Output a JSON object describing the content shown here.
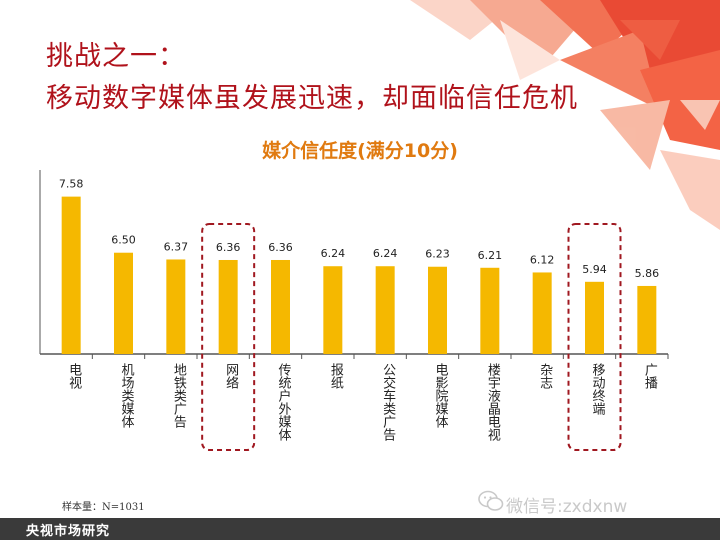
{
  "slide": {
    "title_line1": "挑战之一：",
    "title_line2": "移动数字媒体虽发展迅速，却面临信任危机",
    "sample_note": "样本量：N=1031",
    "watermark": "微信号:zxdxnw",
    "footer": "央视市场研究",
    "colors": {
      "title": "#b0121b",
      "chart_title": "#e07a10",
      "bar": "#f5b800",
      "highlight": "#a01820",
      "footer": "#3a3a3a"
    }
  },
  "chart_data": {
    "type": "bar",
    "title": "媒介信任度(满分10分)",
    "categories": [
      "电视",
      "机场类媒体",
      "地铁类广告",
      "网络",
      "传统户外媒体",
      "报纸",
      "公交车类广告",
      "电影院媒体",
      "楼宇液晶电视",
      "杂志",
      "移动终端",
      "广播"
    ],
    "values": [
      7.58,
      6.5,
      6.37,
      6.36,
      6.36,
      6.24,
      6.24,
      6.23,
      6.21,
      6.12,
      5.94,
      5.86
    ],
    "value_labels": [
      "7.58",
      "6.50",
      "6.37",
      "6.36",
      "6.36",
      "6.24",
      "6.24",
      "6.23",
      "6.21",
      "6.12",
      "5.94",
      "5.86"
    ],
    "highlighted": [
      "网络",
      "移动终端"
    ],
    "ylim": [
      4.55,
      7.9
    ],
    "grid": false,
    "xlabel": "",
    "ylabel": ""
  }
}
